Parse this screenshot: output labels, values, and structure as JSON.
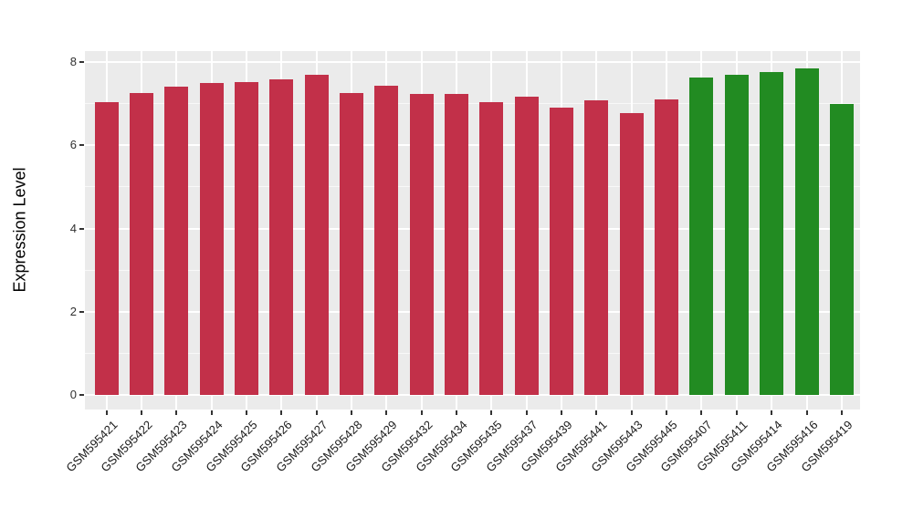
{
  "chart_data": {
    "type": "bar",
    "ylabel": "Expression Level",
    "xlabel": "",
    "yticks": [
      0,
      2,
      4,
      6,
      8
    ],
    "ytick_minor": [
      1,
      3,
      5,
      7
    ],
    "ylim": [
      0,
      8.25
    ],
    "grid": true,
    "legend_position": "none",
    "panel_bg": "#EBEBEB",
    "grid_color": "#FFFFFF",
    "axis_text_color": "#303030",
    "tick_color": "#333333",
    "palette": {
      "red": "#C23049",
      "green": "#228B22"
    },
    "categories": [
      "GSM595421",
      "GSM595422",
      "GSM595423",
      "GSM595424",
      "GSM595425",
      "GSM595426",
      "GSM595427",
      "GSM595428",
      "GSM595429",
      "GSM595432",
      "GSM595434",
      "GSM595435",
      "GSM595437",
      "GSM595439",
      "GSM595441",
      "GSM595443",
      "GSM595445",
      "GSM595407",
      "GSM595411",
      "GSM595414",
      "GSM595416",
      "GSM595419"
    ],
    "values": [
      7.04,
      7.26,
      7.4,
      7.48,
      7.51,
      7.58,
      7.68,
      7.24,
      7.43,
      7.23,
      7.22,
      7.02,
      7.17,
      6.89,
      7.07,
      6.76,
      7.09,
      7.62,
      7.68,
      7.75,
      7.84,
      6.98
    ],
    "groups": [
      "red",
      "red",
      "red",
      "red",
      "red",
      "red",
      "red",
      "red",
      "red",
      "red",
      "red",
      "red",
      "red",
      "red",
      "red",
      "red",
      "red",
      "green",
      "green",
      "green",
      "green",
      "green"
    ]
  }
}
